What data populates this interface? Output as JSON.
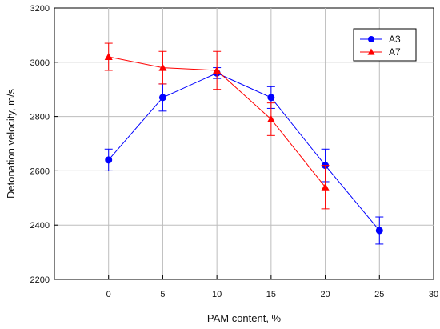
{
  "chart_data": {
    "type": "line",
    "xlabel": "PAM content, %",
    "ylabel": "Detonation velocity, m/s",
    "xlim": [
      -5,
      30
    ],
    "ylim": [
      2200,
      3200
    ],
    "x_ticks": [
      0,
      5,
      10,
      15,
      20,
      25,
      30
    ],
    "y_ticks": [
      2200,
      2400,
      2600,
      2800,
      3000,
      3200
    ],
    "x_tick_labels": [
      "0",
      "5",
      "10",
      "15",
      "20",
      "25",
      "30"
    ],
    "y_tick_labels": [
      "2200",
      "2400",
      "2600",
      "2800",
      "3000",
      "3200"
    ],
    "grid": true,
    "legend_position": "top-right",
    "series": [
      {
        "name": "A3",
        "color": "#0000ff",
        "marker": "circle",
        "x": [
          0,
          5,
          10,
          15,
          20,
          25
        ],
        "y": [
          2640,
          2870,
          2960,
          2870,
          2620,
          2380
        ],
        "error": [
          40,
          50,
          20,
          40,
          60,
          50
        ]
      },
      {
        "name": "A7",
        "color": "#ff0000",
        "marker": "triangle",
        "x": [
          0,
          5,
          10,
          15,
          20
        ],
        "y": [
          3020,
          2980,
          2970,
          2790,
          2540
        ],
        "error": [
          50,
          60,
          70,
          60,
          80
        ]
      }
    ]
  }
}
